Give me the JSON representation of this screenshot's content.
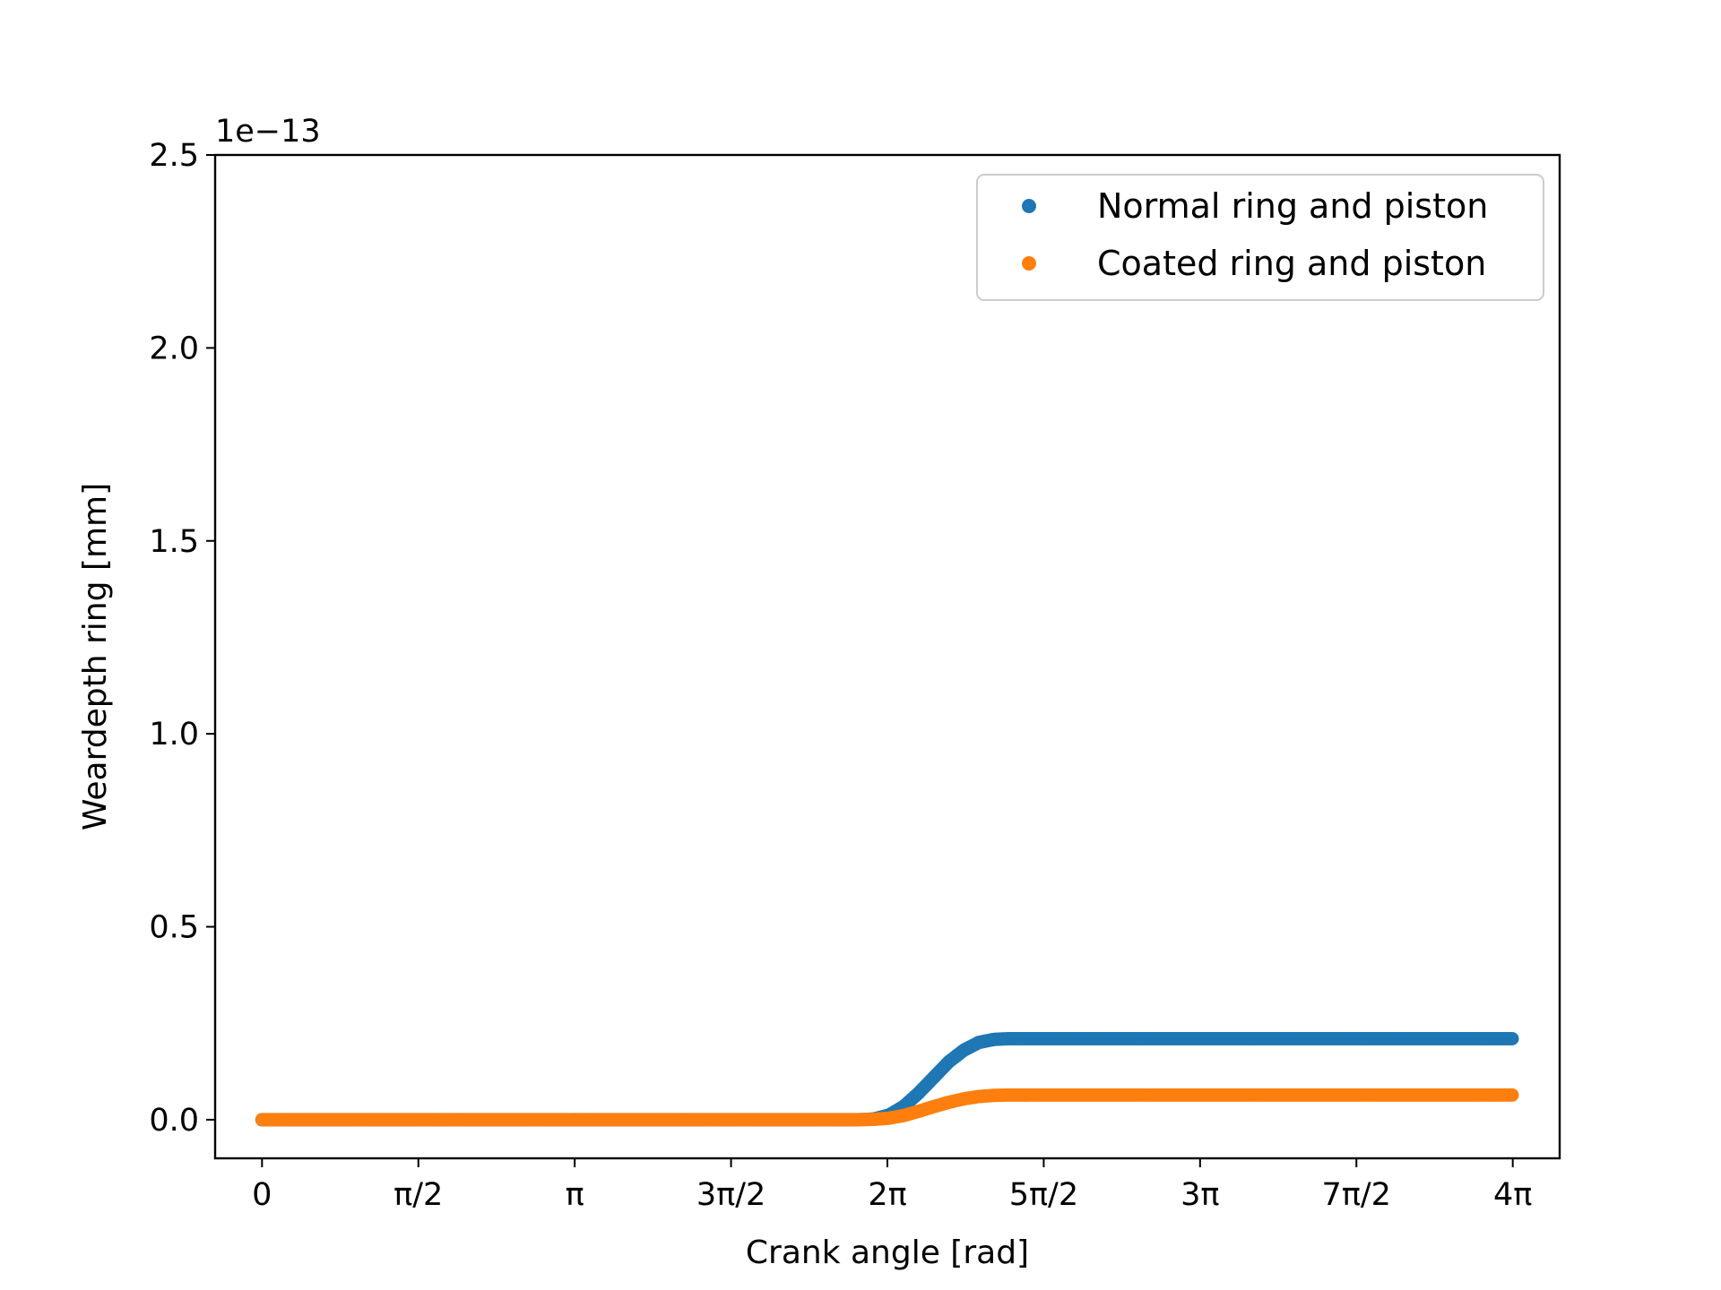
{
  "chart_data": {
    "type": "scatter",
    "xlabel": "Crank angle [rad]",
    "ylabel": "Weardepth ring [mm]",
    "y_offset_text": "1e−13",
    "y_multiplier": 1e-13,
    "xlim": [
      -0.4712,
      13.0376
    ],
    "ylim": [
      -0.1,
      2.5
    ],
    "x_ticks": [
      {
        "value": 0,
        "label": "0"
      },
      {
        "value": 1.5708,
        "label": "π/2"
      },
      {
        "value": 3.1416,
        "label": "π"
      },
      {
        "value": 4.7124,
        "label": "3π/2"
      },
      {
        "value": 6.2832,
        "label": "2π"
      },
      {
        "value": 7.854,
        "label": "5π/2"
      },
      {
        "value": 9.4248,
        "label": "3π"
      },
      {
        "value": 10.9956,
        "label": "7π/2"
      },
      {
        "value": 12.5664,
        "label": "4π"
      }
    ],
    "y_ticks": [
      {
        "value": 0.0,
        "label": "0.0"
      },
      {
        "value": 0.5,
        "label": "0.5"
      },
      {
        "value": 1.0,
        "label": "1.0"
      },
      {
        "value": 1.5,
        "label": "1.5"
      },
      {
        "value": 2.0,
        "label": "2.0"
      },
      {
        "value": 2.5,
        "label": "2.5"
      }
    ],
    "grid": false,
    "legend_position": "top-right",
    "series": [
      {
        "name": "Normal ring and piston",
        "color": "#1f77b4",
        "x": [
          0,
          1,
          2,
          3,
          4,
          5,
          6,
          6.15,
          6.3,
          6.45,
          6.6,
          6.75,
          6.9,
          7.05,
          7.2,
          7.35,
          7.5,
          8,
          9,
          10,
          11,
          12,
          12.5664
        ],
        "y": [
          0,
          0,
          0,
          0,
          0,
          0,
          0,
          0.002,
          0.012,
          0.035,
          0.07,
          0.11,
          0.15,
          0.18,
          0.2,
          0.208,
          0.21,
          0.21,
          0.21,
          0.21,
          0.21,
          0.21,
          0.21
        ]
      },
      {
        "name": "Coated ring and piston",
        "color": "#ff7f0e",
        "x": [
          0,
          1,
          2,
          3,
          4,
          5,
          6,
          6.15,
          6.3,
          6.45,
          6.6,
          6.75,
          6.9,
          7.05,
          7.2,
          7.35,
          7.5,
          8,
          9,
          10,
          11,
          12,
          12.5664
        ],
        "y": [
          0,
          0,
          0,
          0,
          0,
          0,
          0,
          0.001,
          0.004,
          0.011,
          0.022,
          0.034,
          0.045,
          0.054,
          0.06,
          0.063,
          0.064,
          0.064,
          0.064,
          0.064,
          0.064,
          0.064,
          0.064
        ]
      }
    ]
  }
}
